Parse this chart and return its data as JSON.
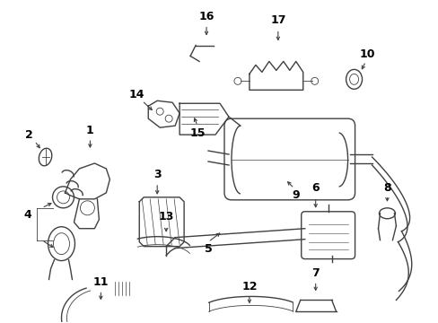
{
  "background_color": "#ffffff",
  "line_color": "#404040",
  "text_color": "#000000",
  "figsize": [
    4.89,
    3.6
  ],
  "dpi": 100,
  "xlim": [
    0,
    489
  ],
  "ylim": [
    360,
    0
  ]
}
